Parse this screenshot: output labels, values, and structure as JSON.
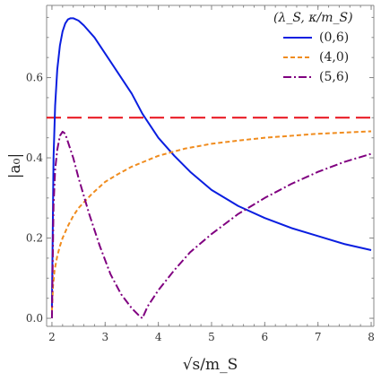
{
  "chart_data": {
    "type": "line",
    "xlabel": "√s/m_S",
    "ylabel": "|a₀|",
    "xlim": [
      1.9,
      8.05
    ],
    "ylim": [
      -0.02,
      0.78
    ],
    "xticks": [
      2,
      3,
      4,
      5,
      6,
      7,
      8
    ],
    "yticks": [
      0.0,
      0.2,
      0.4,
      0.6
    ],
    "ytick_labels": [
      "0.0",
      "0.2",
      "0.4",
      "0.6"
    ],
    "grid": false,
    "legend": {
      "title": "(λ_S, κ/m_S)",
      "placement": "top-right"
    },
    "series": [
      {
        "name": "(0,6)",
        "color": "#0a1ee0",
        "style": "solid",
        "x": [
          2.0,
          2.03,
          2.06,
          2.1,
          2.15,
          2.2,
          2.25,
          2.3,
          2.35,
          2.4,
          2.5,
          2.6,
          2.8,
          3.0,
          3.2,
          3.5,
          3.7,
          4.0,
          4.3,
          4.6,
          5.0,
          5.5,
          6.0,
          6.5,
          7.0,
          7.5,
          8.0
        ],
        "y": [
          0.03,
          0.4,
          0.53,
          0.62,
          0.68,
          0.715,
          0.735,
          0.745,
          0.748,
          0.748,
          0.742,
          0.73,
          0.7,
          0.66,
          0.62,
          0.56,
          0.51,
          0.45,
          0.405,
          0.365,
          0.32,
          0.28,
          0.25,
          0.225,
          0.205,
          0.185,
          0.17
        ]
      },
      {
        "name": "(4,0)",
        "color": "#f08c1e",
        "style": "dashed",
        "x": [
          2.0,
          2.02,
          2.05,
          2.1,
          2.15,
          2.2,
          2.3,
          2.4,
          2.5,
          2.75,
          3.0,
          3.25,
          3.5,
          4.0,
          4.5,
          5.0,
          5.5,
          6.0,
          6.5,
          7.0,
          7.5,
          8.0
        ],
        "y": [
          0.02,
          0.08,
          0.12,
          0.155,
          0.18,
          0.2,
          0.23,
          0.255,
          0.275,
          0.31,
          0.34,
          0.36,
          0.378,
          0.405,
          0.423,
          0.435,
          0.443,
          0.45,
          0.455,
          0.46,
          0.463,
          0.466
        ]
      },
      {
        "name": "(5,6)",
        "color": "#800080",
        "style": "dashdot",
        "x": [
          2.0,
          2.03,
          2.06,
          2.1,
          2.15,
          2.2,
          2.25,
          2.3,
          2.4,
          2.5,
          2.7,
          2.9,
          3.1,
          3.3,
          3.5,
          3.65,
          3.7,
          3.8,
          4.0,
          4.3,
          4.6,
          5.0,
          5.5,
          6.0,
          6.5,
          7.0,
          7.5,
          8.0
        ],
        "y": [
          0.0,
          0.28,
          0.37,
          0.42,
          0.455,
          0.465,
          0.46,
          0.44,
          0.4,
          0.35,
          0.26,
          0.18,
          0.11,
          0.06,
          0.025,
          0.005,
          0.0,
          0.03,
          0.07,
          0.12,
          0.165,
          0.21,
          0.26,
          0.3,
          0.335,
          0.365,
          0.39,
          0.41
        ]
      }
    ],
    "annotations": [
      {
        "type": "hline",
        "y": 0.5,
        "color": "#e8101a",
        "style": "longdash"
      }
    ]
  }
}
